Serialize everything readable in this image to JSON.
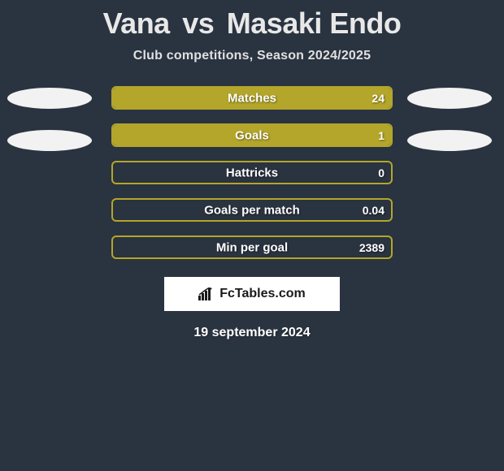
{
  "background_color": "#2a3340",
  "title": {
    "player1": "Vana",
    "vs": "vs",
    "player2": "Masaki Endo",
    "color": "#e8e8e8",
    "fontsize": 36
  },
  "subtitle": {
    "text": "Club competitions, Season 2024/2025",
    "color": "#e0e0e0",
    "fontsize": 16
  },
  "avatars": {
    "left": [
      {
        "name": "player1-avatar",
        "bg": "#f2f2f2"
      },
      {
        "name": "player1-flag",
        "bg": "#f2f2f2"
      }
    ],
    "right": [
      {
        "name": "player2-avatar",
        "bg": "#f2f2f2"
      },
      {
        "name": "player2-flag",
        "bg": "#f2f2f2"
      }
    ]
  },
  "bars": {
    "border_radius": 6,
    "height": 29,
    "items": [
      {
        "label": "Matches",
        "left_val": "",
        "right_val": "24",
        "left_fill_pct": 0,
        "right_fill_pct": 100,
        "left_color": "#7a9c2f",
        "right_color": "#b3a62a",
        "border_color": "#b3a62a"
      },
      {
        "label": "Goals",
        "left_val": "",
        "right_val": "1",
        "left_fill_pct": 0,
        "right_fill_pct": 100,
        "left_color": "#7a9c2f",
        "right_color": "#b3a62a",
        "border_color": "#b3a62a"
      },
      {
        "label": "Hattricks",
        "left_val": "",
        "right_val": "0",
        "left_fill_pct": 0,
        "right_fill_pct": 0,
        "left_color": "#7a9c2f",
        "right_color": "#b3a62a",
        "border_color": "#b3a62a"
      },
      {
        "label": "Goals per match",
        "left_val": "",
        "right_val": "0.04",
        "left_fill_pct": 0,
        "right_fill_pct": 0,
        "left_color": "#7a9c2f",
        "right_color": "#b3a62a",
        "border_color": "#b3a62a"
      },
      {
        "label": "Min per goal",
        "left_val": "",
        "right_val": "2389",
        "left_fill_pct": 0,
        "right_fill_pct": 0,
        "left_color": "#7a9c2f",
        "right_color": "#b3a62a",
        "border_color": "#b3a62a"
      }
    ]
  },
  "brand": {
    "text": "FcTables.com",
    "bg": "#ffffff",
    "text_color": "#1a1a1a",
    "icon_color": "#1a1a1a"
  },
  "date": {
    "text": "19 september 2024",
    "color": "#ffffff",
    "fontsize": 16
  }
}
